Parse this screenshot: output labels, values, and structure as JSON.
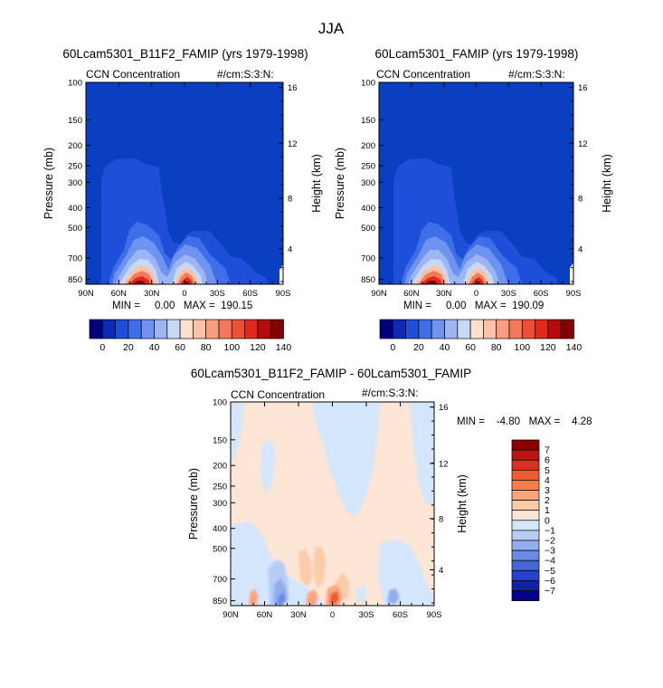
{
  "chart_data": {
    "type": "contour",
    "title": "JJA",
    "panels": [
      {
        "id": "top-left",
        "title": "60Lcam5301_B11F2_FAMIP (yrs 1979-1998)",
        "field_label": "CCN Concentration",
        "units": "#/cm:S:3:N:",
        "xlabel": "",
        "ylabel": "Pressure (mb)",
        "ylabel_right": "Height (km)",
        "x_ticks": [
          "90N",
          "60N",
          "30N",
          "0",
          "30S",
          "60S",
          "90S"
        ],
        "y_ticks": [
          "100",
          "150",
          "200",
          "250",
          "300",
          "400",
          "500",
          "700",
          "850"
        ],
        "y_ticks_right": [
          "16",
          "12",
          "8",
          "4"
        ],
        "stats": "MIN =     0.00   MAX =  190.15",
        "colorbar_labels": [
          "0",
          "20",
          "40",
          "60",
          "80",
          "100",
          "120",
          "140"
        ]
      },
      {
        "id": "top-right",
        "title": "60Lcam5301_FAMIP (yrs 1979-1998)",
        "field_label": "CCN Concentration",
        "units": "#/cm:S:3:N:",
        "xlabel": "",
        "ylabel": "Pressure (mb)",
        "ylabel_right": "Height (km)",
        "x_ticks": [
          "90N",
          "60N",
          "30N",
          "0",
          "30S",
          "60S",
          "90S"
        ],
        "y_ticks": [
          "100",
          "150",
          "200",
          "250",
          "300",
          "400",
          "500",
          "700",
          "850"
        ],
        "y_ticks_right": [
          "16",
          "12",
          "8",
          "4"
        ],
        "stats": "MIN =     0.00   MAX =  190.09",
        "colorbar_labels": [
          "0",
          "20",
          "40",
          "60",
          "80",
          "100",
          "120",
          "140"
        ]
      },
      {
        "id": "bottom",
        "title": "60Lcam5301_B11F2_FAMIP - 60Lcam5301_FAMIP",
        "field_label": "CCN Concentration",
        "units": "#/cm:S:3:N:",
        "xlabel": "",
        "ylabel": "Pressure (mb)",
        "ylabel_right": "Height (km)",
        "x_ticks": [
          "90N",
          "60N",
          "30N",
          "0",
          "30S",
          "60S",
          "90S"
        ],
        "y_ticks": [
          "100",
          "150",
          "200",
          "250",
          "300",
          "400",
          "500",
          "700",
          "850"
        ],
        "y_ticks_right": [
          "16",
          "12",
          "8",
          "4"
        ],
        "stats": "MIN =    -4.80   MAX =    4.28",
        "colorbar_labels": [
          "7",
          "6",
          "5",
          "4",
          "3",
          "2",
          "1",
          "0",
          "−1",
          "−2",
          "−3",
          "−4",
          "−5",
          "−6",
          "−7"
        ]
      }
    ],
    "colorbar_full_colors": [
      "#00007f",
      "#0b2bb5",
      "#1f4fd8",
      "#3f6fe8",
      "#6f93f0",
      "#9cb6f4",
      "#c8d8f8",
      "#fde0d0",
      "#fbc2a8",
      "#f89f80",
      "#f4795a",
      "#ef4f34",
      "#e0291a",
      "#b80c0c",
      "#870000"
    ],
    "colorbar_diff_colors": [
      "#8b0000",
      "#b81710",
      "#d93220",
      "#ef5a30",
      "#f77e4c",
      "#f9a57c",
      "#fbcbaa",
      "#fde6d6",
      "#d4e6fb",
      "#b8cdf5",
      "#93aeee",
      "#6b8ae5",
      "#4565d8",
      "#2741c8",
      "#0f22a8",
      "#00008b"
    ],
    "colors": {
      "field_background": "#0a3fc2"
    }
  }
}
